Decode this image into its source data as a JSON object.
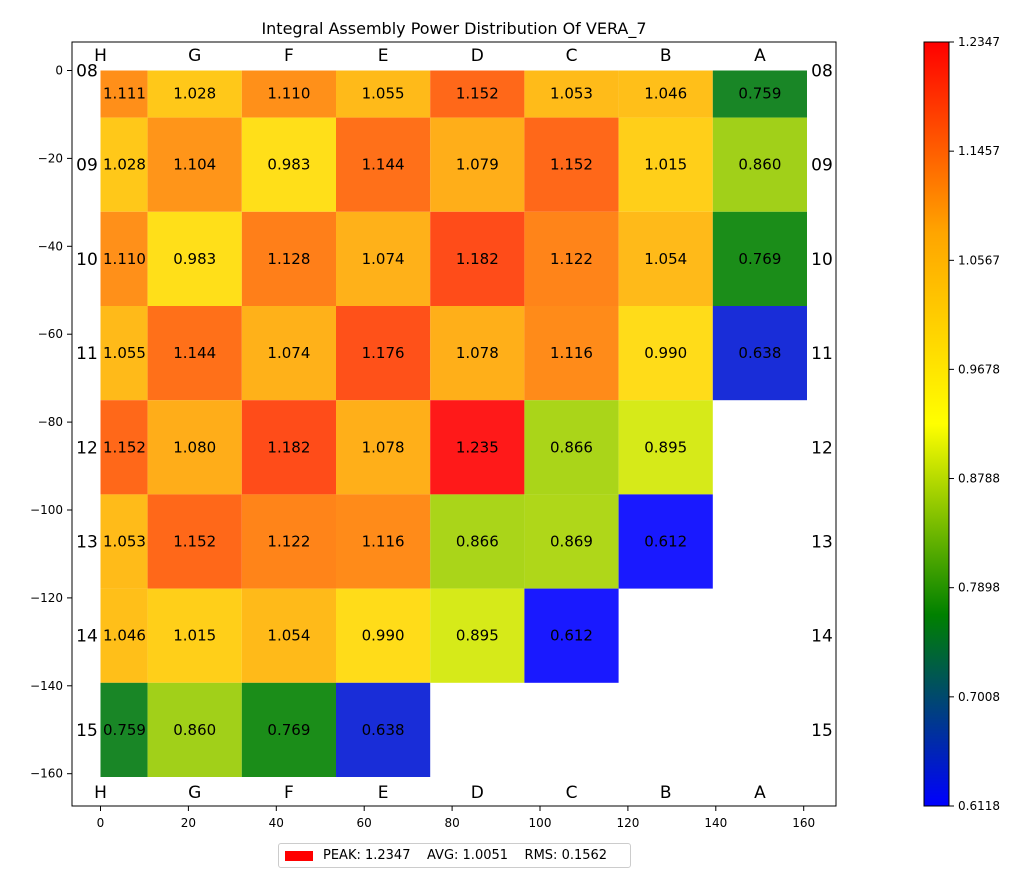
{
  "chart_data": {
    "type": "heatmap",
    "title": "Integral Assembly Power Distribution Of VERA_7",
    "column_labels": [
      "H",
      "G",
      "F",
      "E",
      "D",
      "C",
      "B",
      "A"
    ],
    "row_labels": [
      "08",
      "09",
      "10",
      "11",
      "12",
      "13",
      "14",
      "15"
    ],
    "values": [
      [
        1.111,
        1.028,
        1.11,
        1.055,
        1.152,
        1.053,
        1.046,
        0.759
      ],
      [
        1.028,
        1.104,
        0.983,
        1.144,
        1.079,
        1.152,
        1.015,
        0.86
      ],
      [
        1.11,
        0.983,
        1.128,
        1.074,
        1.182,
        1.122,
        1.054,
        0.769
      ],
      [
        1.055,
        1.144,
        1.074,
        1.176,
        1.078,
        1.116,
        0.99,
        0.638
      ],
      [
        1.152,
        1.08,
        1.182,
        1.078,
        1.235,
        0.866,
        0.895,
        null
      ],
      [
        1.053,
        1.152,
        1.122,
        1.116,
        0.866,
        0.869,
        0.612,
        null
      ],
      [
        1.046,
        1.015,
        1.054,
        0.99,
        0.895,
        0.612,
        null,
        null
      ],
      [
        0.759,
        0.86,
        0.769,
        0.638,
        null,
        null,
        null,
        null
      ]
    ],
    "value_labels": [
      [
        "1.111",
        "1.028",
        "1.110",
        "1.055",
        "1.152",
        "1.053",
        "1.046",
        "0.759"
      ],
      [
        "1.028",
        "1.104",
        "0.983",
        "1.144",
        "1.079",
        "1.152",
        "1.015",
        "0.860"
      ],
      [
        "1.110",
        "0.983",
        "1.128",
        "1.074",
        "1.182",
        "1.122",
        "1.054",
        "0.769"
      ],
      [
        "1.055",
        "1.144",
        "1.074",
        "1.176",
        "1.078",
        "1.116",
        "0.990",
        "0.638"
      ],
      [
        "1.152",
        "1.080",
        "1.182",
        "1.078",
        "1.235",
        "0.866",
        "0.895",
        null
      ],
      [
        "1.053",
        "1.152",
        "1.122",
        "1.116",
        "0.866",
        "0.869",
        "0.612",
        null
      ],
      [
        "1.046",
        "1.015",
        "1.054",
        "0.990",
        "0.895",
        "0.612",
        null,
        null
      ],
      [
        "0.759",
        "0.860",
        "0.769",
        "0.638",
        null,
        null,
        null,
        null
      ]
    ],
    "x_ticks": [
      0,
      20,
      40,
      60,
      80,
      100,
      120,
      140,
      160
    ],
    "x_tick_labels": [
      "0",
      "20",
      "40",
      "60",
      "80",
      "100",
      "120",
      "140",
      "160"
    ],
    "y_ticks": [
      0,
      -20,
      -40,
      -60,
      -80,
      -100,
      -120,
      -140,
      -160
    ],
    "y_tick_labels": [
      "0",
      "−20",
      "−40",
      "−60",
      "−80",
      "−100",
      "−120",
      "−140",
      "−160"
    ],
    "colorbar": {
      "min": 0.6118,
      "max": 1.2347,
      "tick_values": [
        0.6118,
        0.7008,
        0.7898,
        0.8788,
        0.9678,
        1.0567,
        1.1457,
        1.2347
      ],
      "tick_labels": [
        "0.6118",
        "0.7008",
        "0.7898",
        "0.8788",
        "0.9678",
        "1.0567",
        "1.1457",
        "1.2347"
      ],
      "colors": [
        "#0000ff",
        "#008000",
        "#ffff00",
        "#ffa500",
        "#ff0000"
      ]
    },
    "legend": {
      "color": "#ff0000",
      "text": "PEAK: 1.2347    AVG: 1.0051    RMS: 0.1562",
      "placement": "bottom-center"
    },
    "grid": false
  }
}
